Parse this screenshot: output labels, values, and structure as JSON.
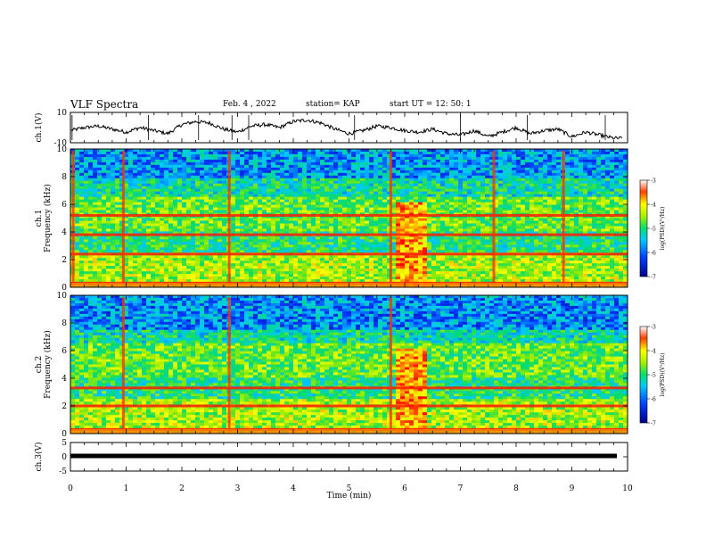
{
  "header": {
    "title": "VLF Spectra",
    "date": "Feb. 4 , 2022",
    "station": "station= KAP",
    "start_ut": "start UT = 12: 50: 1"
  },
  "chart_data": [
    {
      "type": "line",
      "title": "",
      "ylabel": "ch.1(V)",
      "ylim": [
        -10,
        10
      ],
      "yticks": [
        "10",
        "-10"
      ],
      "xlim": [
        0,
        10
      ],
      "series": [
        {
          "x": [
            0,
            0.25,
            0.5,
            0.75,
            1,
            1.25,
            1.5,
            1.75,
            2,
            2.25,
            2.5,
            2.75,
            3,
            3.25,
            3.5,
            3.75,
            4,
            4.25,
            4.5,
            4.75,
            5,
            5.25,
            5.5,
            5.75,
            6,
            6.25,
            6.5,
            6.75,
            7,
            7.25,
            7.5,
            7.75,
            8,
            8.25,
            8.5,
            8.75,
            9,
            9.25,
            9.5,
            9.75
          ],
          "y": [
            -2,
            0,
            1,
            -1,
            -3,
            0,
            -2,
            -4,
            2,
            4,
            3,
            -1,
            -3,
            1,
            2,
            0,
            4,
            5,
            3,
            -1,
            -4,
            -2,
            1,
            0,
            -2,
            -3,
            -1,
            -4,
            -5,
            -2,
            -6,
            -3,
            0,
            -4,
            -2,
            -1,
            -6,
            -3,
            -5,
            -7
          ]
        }
      ],
      "color": "#000000"
    },
    {
      "type": "heatmap",
      "title": "",
      "ylabel": "ch.1\nFrequency (kHz)",
      "ylim": [
        0,
        10
      ],
      "yticks": [
        "0",
        "2",
        "4",
        "6",
        "8",
        "10"
      ],
      "xlim": [
        0,
        10
      ],
      "colorbar": {
        "label": "log(PSD)(V²/Hz)",
        "range": [
          -7,
          -3
        ],
        "ticks": [
          "-3",
          "-4",
          "-5",
          "-6",
          "-7"
        ]
      },
      "features": {
        "red_lines_khz": [
          5.2,
          3.8,
          2.4,
          0.3
        ],
        "broadband_burst_min": [
          5.8,
          6.4
        ],
        "vertical_spikes_min": [
          0.05,
          0.95,
          2.85,
          5.75,
          7.6,
          8.85
        ]
      }
    },
    {
      "type": "heatmap",
      "title": "",
      "ylabel": "ch.2\nFrequency (kHz)",
      "ylim": [
        0,
        10
      ],
      "yticks": [
        "0",
        "2",
        "4",
        "6",
        "8",
        "10"
      ],
      "xlim": [
        0,
        10
      ],
      "colorbar": {
        "label": "log(PSD)(V²/Hz)",
        "range": [
          -7,
          -3
        ],
        "ticks": [
          "-3",
          "-4",
          "-5",
          "-6",
          "-7"
        ]
      },
      "features": {
        "red_lines_khz": [
          3.3,
          2.0,
          0.3
        ],
        "broadband_burst_min": [
          5.8,
          6.4
        ],
        "vertical_spikes_min": [
          0.95,
          2.85,
          5.75
        ]
      }
    },
    {
      "type": "line",
      "title": "",
      "ylabel": "ch.3(V)",
      "ylim": [
        -5,
        5
      ],
      "yticks": [
        "5",
        "0",
        "-5"
      ],
      "xlim": [
        0,
        10
      ],
      "xlabel": "Time (min)",
      "xticks": [
        "0",
        "1",
        "2",
        "3",
        "4",
        "5",
        "6",
        "7",
        "8",
        "9",
        "10"
      ],
      "series": [
        {
          "x": [
            0,
            10
          ],
          "y": [
            0.3,
            0.3
          ]
        }
      ],
      "color": "#000000"
    }
  ]
}
